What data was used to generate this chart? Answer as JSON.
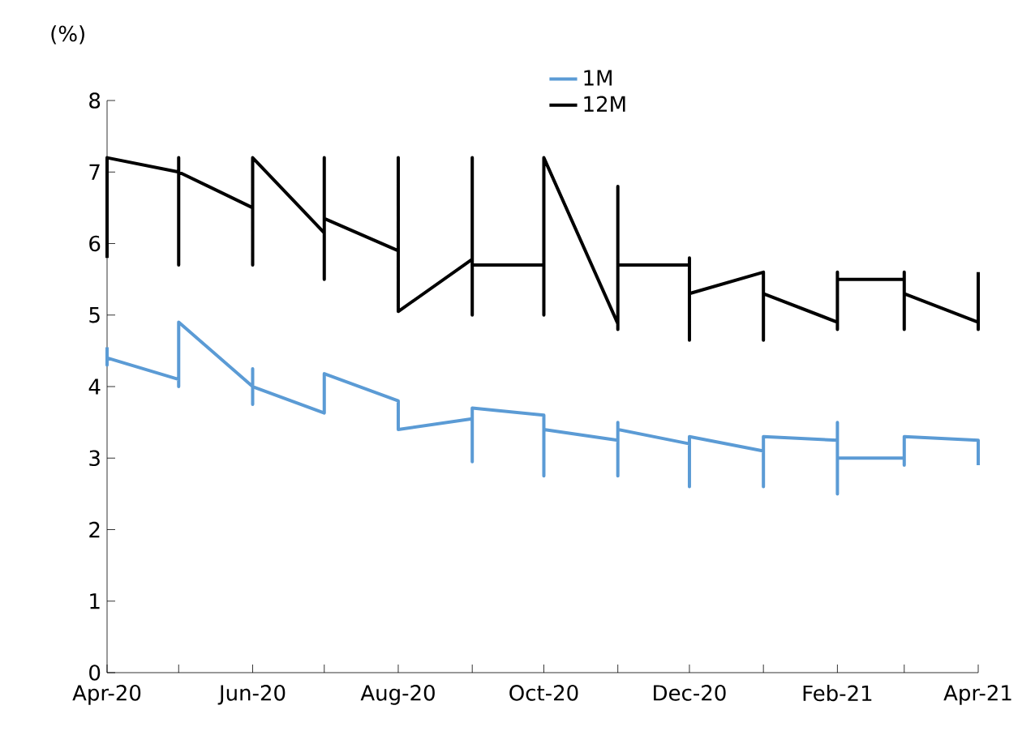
{
  "chart_data": {
    "type": "line",
    "ylabel": "(%)",
    "xlim": [
      "2020-04",
      "2021-04"
    ],
    "xticks": [
      {
        "value": "2020-04",
        "label": "Apr-20"
      },
      {
        "value": "2020-05",
        "label": null
      },
      {
        "value": "2020-06",
        "label": "Jun-20"
      },
      {
        "value": "2020-07",
        "label": null
      },
      {
        "value": "2020-08",
        "label": "Aug-20"
      },
      {
        "value": "2020-09",
        "label": null
      },
      {
        "value": "2020-10",
        "label": "Oct-20"
      },
      {
        "value": "2020-11",
        "label": null
      },
      {
        "value": "2020-12",
        "label": "Dec-20"
      },
      {
        "value": "2021-01",
        "label": null
      },
      {
        "value": "2021-02",
        "label": "Feb-21"
      },
      {
        "value": "2021-03",
        "label": null
      },
      {
        "value": "2021-04",
        "label": "Apr-21"
      }
    ],
    "ylim": [
      0,
      8
    ],
    "yticks": [
      0,
      1,
      2,
      3,
      4,
      5,
      6,
      7,
      8
    ],
    "grid": false,
    "legend": "top",
    "marker": "none",
    "line_style": "solid",
    "series": [
      {
        "name": "1M",
        "color": "#5b9bd5",
        "x": [
          "2020-04",
          "2020-04",
          "2020-04",
          "2020-05",
          "2020-05",
          "2020-05",
          "2020-06",
          "2020-06",
          "2020-06",
          "2020-06",
          "2020-07",
          "2020-07",
          "2020-08",
          "2020-08",
          "2020-09",
          "2020-09",
          "2020-09",
          "2020-10",
          "2020-10",
          "2020-10",
          "2020-11",
          "2020-11",
          "2020-11",
          "2020-11",
          "2020-12",
          "2020-12",
          "2020-12",
          "2021-01",
          "2021-01",
          "2021-01",
          "2021-02",
          "2021-02",
          "2021-02",
          "2021-02",
          "2021-03",
          "2021-03",
          "2021-03",
          "2021-04",
          "2021-04"
        ],
        "values": [
          4.55,
          4.3,
          4.4,
          4.1,
          4.0,
          4.9,
          4.0,
          4.25,
          3.75,
          4.0,
          3.63,
          4.18,
          3.8,
          3.4,
          3.55,
          2.95,
          3.7,
          3.6,
          2.75,
          3.4,
          3.25,
          2.75,
          3.5,
          3.4,
          3.2,
          2.6,
          3.3,
          3.1,
          2.6,
          3.3,
          3.25,
          3.5,
          2.5,
          3.0,
          3.0,
          2.9,
          3.3,
          3.25,
          2.9
        ]
      },
      {
        "name": "12M",
        "color": "#000000",
        "x": [
          "2020-04",
          "2020-04",
          "2020-05",
          "2020-05",
          "2020-05",
          "2020-05",
          "2020-06",
          "2020-06",
          "2020-06",
          "2020-07",
          "2020-07",
          "2020-07",
          "2020-07",
          "2020-08",
          "2020-08",
          "2020-08",
          "2020-09",
          "2020-09",
          "2020-09",
          "2020-09",
          "2020-10",
          "2020-10",
          "2020-10",
          "2020-11",
          "2020-11",
          "2020-11",
          "2020-11",
          "2020-12",
          "2020-12",
          "2020-12",
          "2020-12",
          "2021-01",
          "2021-01",
          "2021-01",
          "2021-02",
          "2021-02",
          "2021-02",
          "2021-02",
          "2021-03",
          "2021-03",
          "2021-03",
          "2021-03",
          "2021-04",
          "2021-04",
          "2021-04"
        ],
        "values": [
          5.8,
          7.2,
          7.0,
          7.2,
          5.7,
          7.0,
          6.5,
          5.7,
          7.2,
          6.15,
          5.5,
          7.2,
          6.35,
          5.9,
          7.2,
          5.05,
          5.78,
          7.2,
          5.0,
          5.7,
          5.7,
          5.0,
          7.2,
          4.88,
          4.8,
          6.8,
          5.7,
          5.7,
          5.8,
          4.65,
          5.3,
          5.6,
          4.65,
          5.3,
          4.9,
          4.8,
          5.6,
          5.5,
          5.5,
          5.6,
          4.8,
          5.3,
          4.9,
          4.8,
          5.6
        ]
      }
    ]
  }
}
